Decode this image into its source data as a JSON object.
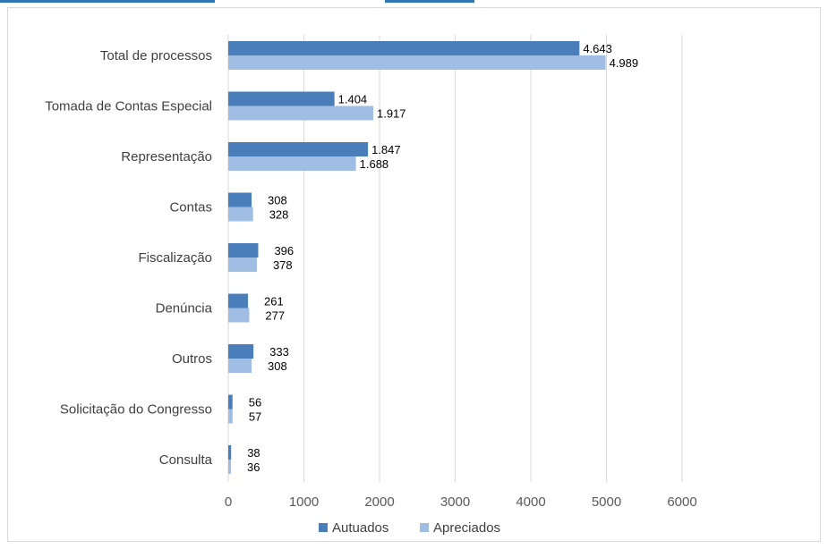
{
  "colors": {
    "autuados": "#4a7ebb",
    "apreciados": "#a0bde3",
    "grid": "#d9d9d9",
    "header_strip": "#2e75b6"
  },
  "chart_data": {
    "type": "bar",
    "orientation": "horizontal",
    "categories": [
      "Total de processos",
      "Tomada de Contas Especial",
      "Representação",
      "Contas",
      "Fiscalização",
      "Denúncia",
      "Outros",
      "Solicitação do Congresso",
      "Consulta"
    ],
    "series": [
      {
        "name": "Autuados",
        "values": [
          4643,
          1404,
          1847,
          308,
          396,
          261,
          333,
          56,
          38
        ],
        "labels": [
          "4.643",
          "1.404",
          "1.847",
          "308",
          "396",
          "261",
          "333",
          "56",
          "38"
        ]
      },
      {
        "name": "Apreciados",
        "values": [
          4989,
          1917,
          1688,
          328,
          378,
          277,
          308,
          57,
          36
        ],
        "labels": [
          "4.989",
          "1.917",
          "1.688",
          "328",
          "378",
          "277",
          "308",
          "57",
          "36"
        ]
      }
    ],
    "xlim": [
      0,
      6000
    ],
    "xticks": [
      "0",
      "1000",
      "2000",
      "3000",
      "4000",
      "5000",
      "6000"
    ],
    "grid": true,
    "legend_position": "bottom"
  }
}
